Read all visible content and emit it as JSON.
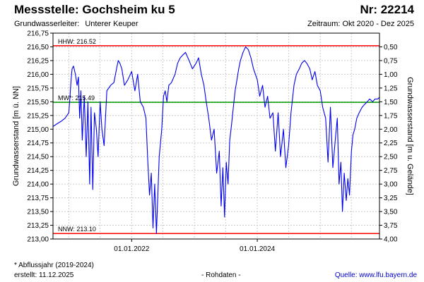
{
  "header": {
    "title": "Messstelle: Gochsheim ku 5",
    "nr": "Nr: 22214",
    "aquifer_label": "Grundwasserleiter:",
    "aquifer_value": "Unterer Keuper",
    "period": "Zeitraum: Okt 2020 - Dez 2025"
  },
  "footer": {
    "note": "* Abflussjahr (2019-2024)",
    "created": "erstellt:  11.12.2025",
    "data_kind": "- Rohdaten -",
    "source": "Quelle: www.lfu.bayern.de"
  },
  "colors": {
    "series": "#0000ee",
    "extreme_lines": "#ff0000",
    "mean_line": "#009900",
    "grid": "#cccccc"
  },
  "chart_data": {
    "type": "line",
    "ylabel": "Grundwasserstand [m ü. NN]",
    "y2label": "Grundwasserstand [m u. Gelände]",
    "ylim": [
      213.0,
      216.75
    ],
    "y2lim": [
      4.0,
      0.25
    ],
    "yticks": [
      "216,75",
      "216,50",
      "216,25",
      "216,00",
      "215,75",
      "215,50",
      "215,25",
      "215,00",
      "214,75",
      "214,50",
      "214,25",
      "214,00",
      "213,75",
      "213,50",
      "213,25",
      "213,00"
    ],
    "y2ticks": [
      "0,50",
      "0,75",
      "1,00",
      "1,25",
      "1,50",
      "1,75",
      "2,00",
      "2,25",
      "2,50",
      "2,75",
      "3,00",
      "3,25",
      "3,50",
      "3,75",
      "4,00"
    ],
    "xlim": [
      "2020-10-01",
      "2025-12-11"
    ],
    "xticks": [
      {
        "date": "2022-01-01",
        "label": "01.01.2022"
      },
      {
        "date": "2024-01-01",
        "label": "01.01.2024"
      }
    ],
    "grid": true,
    "ref_lines": [
      {
        "label": "HHW: 216.52",
        "value": 216.52,
        "kind": "extreme"
      },
      {
        "label": "MW*: 215.49",
        "value": 215.49,
        "kind": "mean"
      },
      {
        "label": "NNW: 213.10",
        "value": 213.1,
        "kind": "extreme"
      }
    ],
    "series": [
      {
        "x": [
          "2020-10-01",
          "2020-10-25",
          "2020-11-20",
          "2020-12-10",
          "2021-01-01",
          "2021-01-08",
          "2021-01-14",
          "2021-01-20",
          "2021-01-28",
          "2021-02-08",
          "2021-02-18",
          "2021-02-26",
          "2021-03-05",
          "2021-03-12",
          "2021-03-20",
          "2021-04-01",
          "2021-04-12",
          "2021-04-22",
          "2021-05-02",
          "2021-05-10",
          "2021-05-20",
          "2021-05-30",
          "2021-06-10",
          "2021-06-20",
          "2021-07-02",
          "2021-07-12",
          "2021-07-25",
          "2021-08-10",
          "2021-09-01",
          "2021-09-20",
          "2021-10-05",
          "2021-10-15",
          "2021-10-25",
          "2021-11-05",
          "2021-11-20",
          "2021-12-10",
          "2022-01-01",
          "2022-01-20",
          "2022-02-05",
          "2022-02-20",
          "2022-03-10",
          "2022-03-25",
          "2022-04-05",
          "2022-04-15",
          "2022-04-25",
          "2022-05-05",
          "2022-05-15",
          "2022-05-25",
          "2022-06-10",
          "2022-06-25",
          "2022-07-05",
          "2022-07-15",
          "2022-07-25",
          "2022-08-05",
          "2022-08-20",
          "2022-09-10",
          "2022-09-25",
          "2022-10-10",
          "2022-10-25",
          "2022-11-10",
          "2022-12-01",
          "2022-12-20",
          "2023-01-10",
          "2023-01-25",
          "2023-02-10",
          "2023-02-25",
          "2023-03-10",
          "2023-03-25",
          "2023-04-10",
          "2023-04-25",
          "2023-05-10",
          "2023-05-25",
          "2023-06-05",
          "2023-06-15",
          "2023-06-25",
          "2023-07-05",
          "2023-07-15",
          "2023-07-25",
          "2023-08-05",
          "2023-08-15",
          "2023-08-25",
          "2023-09-05",
          "2023-09-15",
          "2023-09-25",
          "2023-10-10",
          "2023-10-25",
          "2023-11-10",
          "2023-11-25",
          "2023-12-10",
          "2024-01-01",
          "2024-01-15",
          "2024-02-01",
          "2024-02-15",
          "2024-03-01",
          "2024-03-15",
          "2024-04-01",
          "2024-04-15",
          "2024-05-01",
          "2024-05-15",
          "2024-06-01",
          "2024-06-15",
          "2024-07-01",
          "2024-07-15",
          "2024-08-01",
          "2024-08-15",
          "2024-09-01",
          "2024-09-15",
          "2024-10-01",
          "2024-10-15",
          "2024-11-01",
          "2024-11-15",
          "2024-12-01",
          "2024-12-15",
          "2025-01-01",
          "2025-01-15",
          "2025-02-01",
          "2025-02-15",
          "2025-03-01",
          "2025-03-15",
          "2025-04-01",
          "2025-04-10",
          "2025-04-20",
          "2025-05-01",
          "2025-05-10",
          "2025-05-20",
          "2025-06-01",
          "2025-06-10",
          "2025-06-20",
          "2025-07-01",
          "2025-07-10",
          "2025-07-20",
          "2025-08-01",
          "2025-08-15",
          "2025-09-01",
          "2025-09-15",
          "2025-10-01",
          "2025-10-15",
          "2025-11-01",
          "2025-11-15",
          "2025-12-01",
          "2025-12-10"
        ],
        "values": [
          215.05,
          215.1,
          215.15,
          215.2,
          215.3,
          215.6,
          215.9,
          216.1,
          216.15,
          216.0,
          215.8,
          215.95,
          215.2,
          215.7,
          214.8,
          215.6,
          214.5,
          215.5,
          214.0,
          215.4,
          213.9,
          215.3,
          215.0,
          214.5,
          215.5,
          215.0,
          214.7,
          215.7,
          215.8,
          215.85,
          216.1,
          216.25,
          216.2,
          216.1,
          215.8,
          215.9,
          216.05,
          215.7,
          216.0,
          215.5,
          215.4,
          215.2,
          214.4,
          213.8,
          214.2,
          213.2,
          214.0,
          213.1,
          214.5,
          215.0,
          215.6,
          215.7,
          215.5,
          215.8,
          215.85,
          216.0,
          216.2,
          216.3,
          216.35,
          216.4,
          216.25,
          216.1,
          216.2,
          216.3,
          216.0,
          215.8,
          215.5,
          215.2,
          214.8,
          215.0,
          214.2,
          214.6,
          213.6,
          214.3,
          213.4,
          214.4,
          214.0,
          214.8,
          215.1,
          215.4,
          215.7,
          215.9,
          216.1,
          216.25,
          216.4,
          216.5,
          216.45,
          216.3,
          216.1,
          215.9,
          215.6,
          215.8,
          215.4,
          215.6,
          215.2,
          215.3,
          214.6,
          215.3,
          214.5,
          215.0,
          214.3,
          214.7,
          215.3,
          215.8,
          216.0,
          216.1,
          216.2,
          216.25,
          216.2,
          216.1,
          215.9,
          216.05,
          215.8,
          215.7,
          215.4,
          215.2,
          214.4,
          215.4,
          214.3,
          214.9,
          215.2,
          214.0,
          214.4,
          213.5,
          214.2,
          213.7,
          214.1,
          213.8,
          214.6,
          214.9,
          215.0,
          215.2,
          215.3,
          215.4,
          215.45,
          215.5,
          215.55,
          215.5,
          215.55,
          215.55,
          215.58
        ]
      }
    ]
  }
}
